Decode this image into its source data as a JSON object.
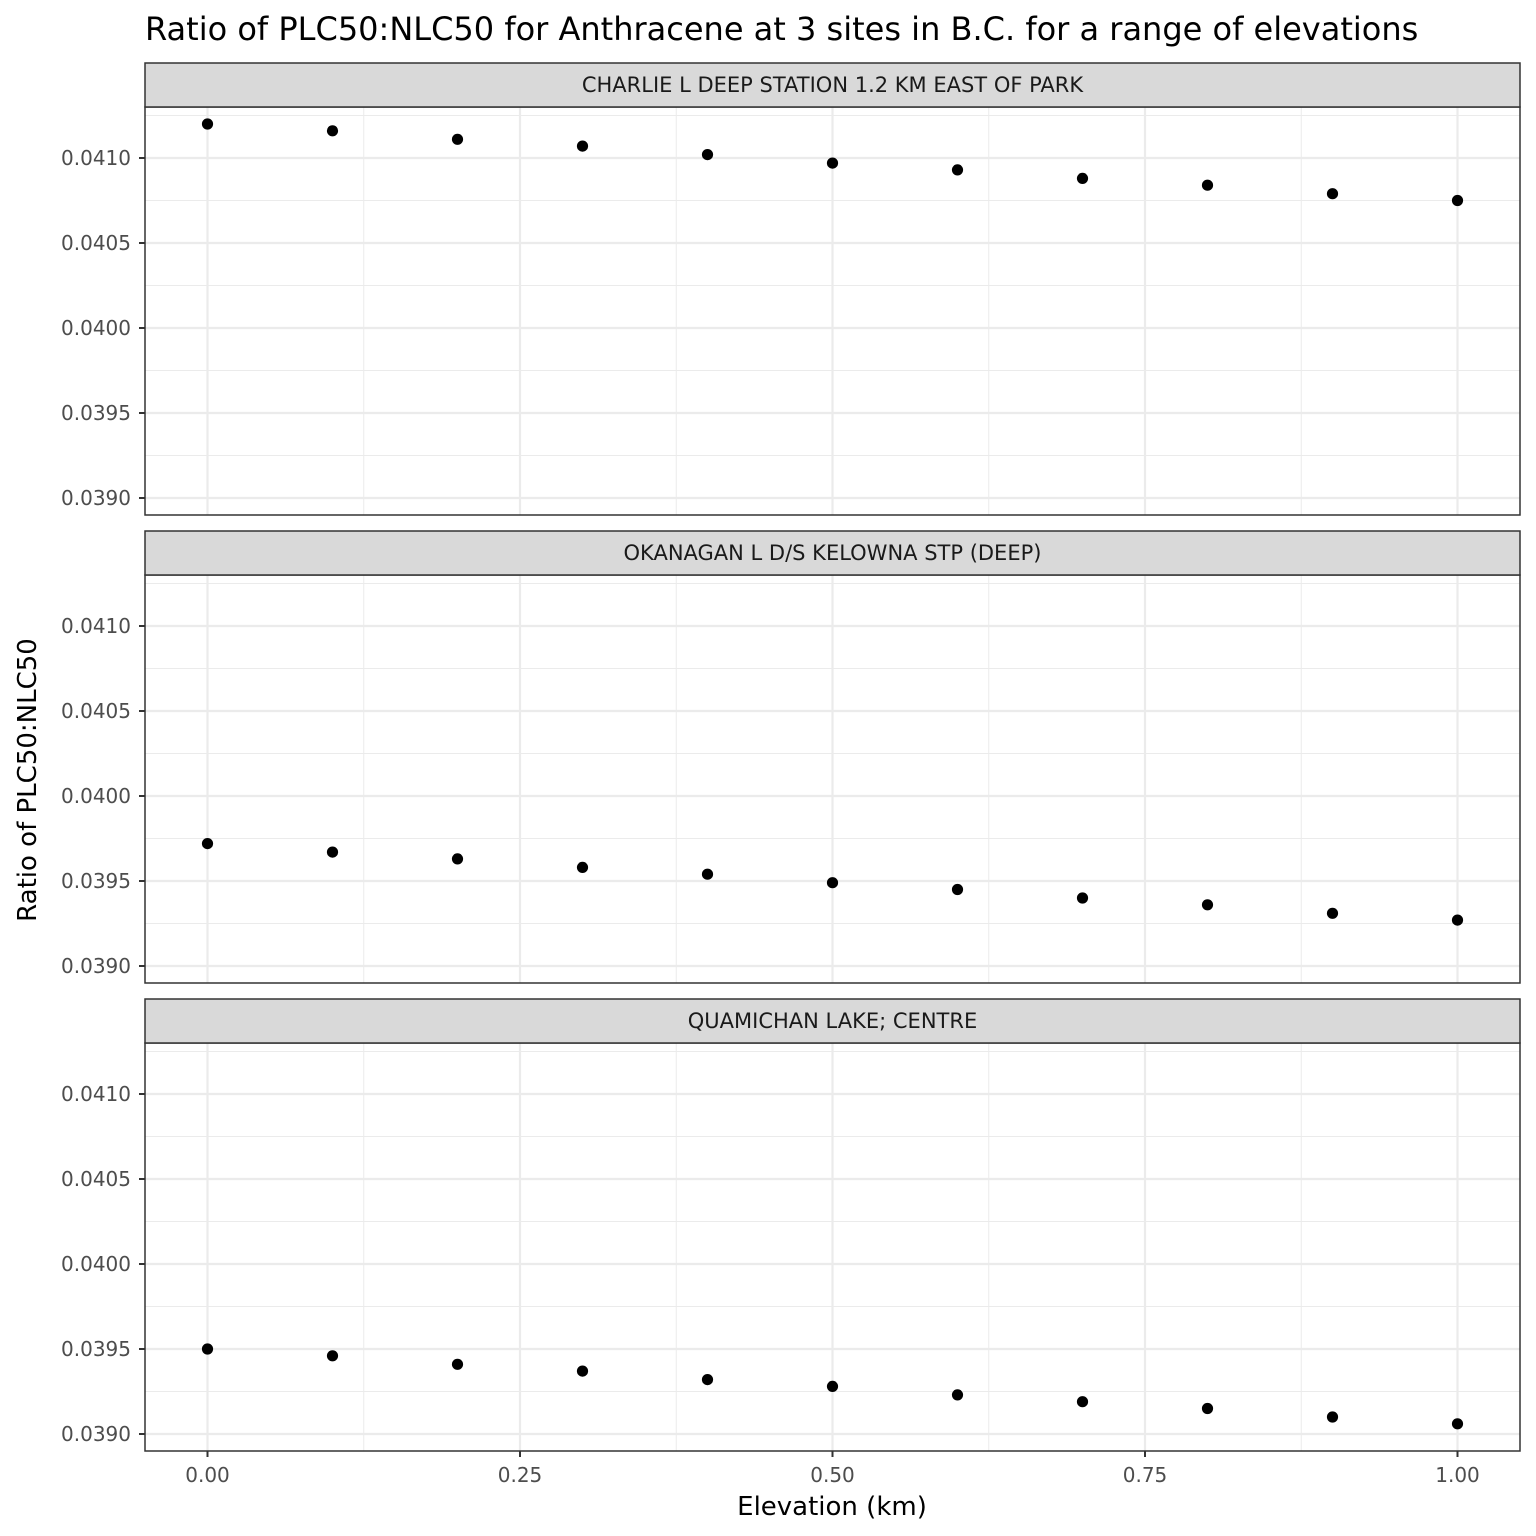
{
  "chart_data": {
    "type": "scatter",
    "title": "Ratio of PLC50:NLC50 for Anthracene at 3 sites in B.C. for a range of elevations",
    "xlabel": "Elevation (km)",
    "ylabel": "Ratio of PLC50:NLC50",
    "xlim": [
      -0.05,
      1.05
    ],
    "ylim": [
      0.0389,
      0.0413
    ],
    "x_ticks": [
      0.0,
      0.25,
      0.5,
      0.75,
      1.0
    ],
    "x_tick_labels": [
      "0.00",
      "0.25",
      "0.50",
      "0.75",
      "1.00"
    ],
    "y_ticks": [
      0.039,
      0.0395,
      0.04,
      0.0405,
      0.041
    ],
    "y_tick_labels": [
      "0.0390",
      "0.0395",
      "0.0400",
      "0.0405",
      "0.0410"
    ],
    "grid": true,
    "point_color": "#000000",
    "panels": [
      {
        "label": "CHARLIE L DEEP STATION 1.2 KM EAST OF PARK",
        "x": [
          0.0,
          0.1,
          0.2,
          0.3,
          0.4,
          0.5,
          0.6,
          0.7,
          0.8,
          0.9,
          1.0
        ],
        "y": [
          0.0412,
          0.04116,
          0.04111,
          0.04107,
          0.04102,
          0.04097,
          0.04093,
          0.04088,
          0.04084,
          0.04079,
          0.04075
        ]
      },
      {
        "label": "OKANAGAN L D/S KELOWNA STP (DEEP)",
        "x": [
          0.0,
          0.1,
          0.2,
          0.3,
          0.4,
          0.5,
          0.6,
          0.7,
          0.8,
          0.9,
          1.0
        ],
        "y": [
          0.03972,
          0.03967,
          0.03963,
          0.03958,
          0.03954,
          0.03949,
          0.03945,
          0.0394,
          0.03936,
          0.03931,
          0.03927
        ]
      },
      {
        "label": "QUAMICHAN LAKE; CENTRE",
        "x": [
          0.0,
          0.1,
          0.2,
          0.3,
          0.4,
          0.5,
          0.6,
          0.7,
          0.8,
          0.9,
          1.0
        ],
        "y": [
          0.0395,
          0.03946,
          0.03941,
          0.03937,
          0.03932,
          0.03928,
          0.03923,
          0.03919,
          0.03915,
          0.0391,
          0.03906
        ]
      }
    ]
  }
}
